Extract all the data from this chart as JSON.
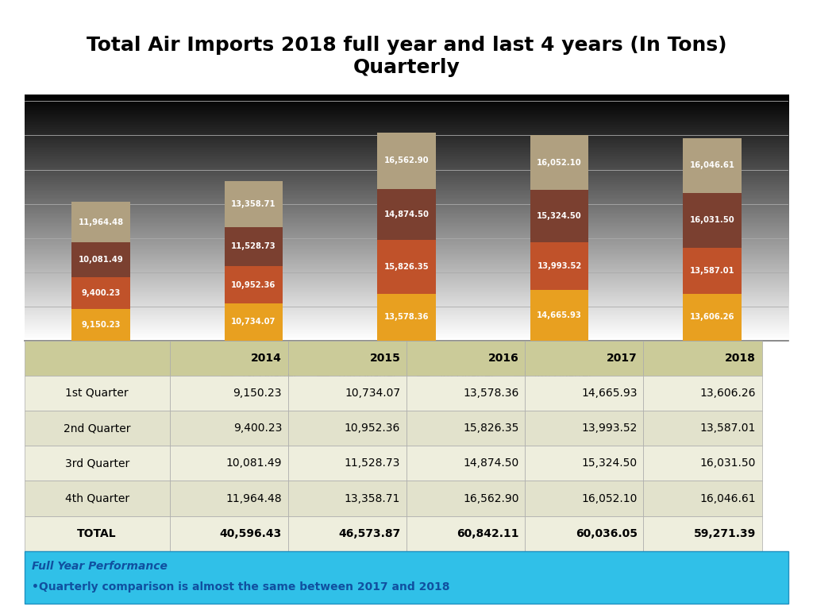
{
  "title": "Total Air Imports 2018 full year and last 4 years (In Tons)\nQuarterly",
  "years": [
    "2014",
    "2015",
    "2016",
    "2017",
    "2018"
  ],
  "quarters": {
    "1st Quarter": [
      9150.23,
      10734.07,
      13578.36,
      14665.93,
      13606.26
    ],
    "2nd Quarter": [
      9400.23,
      10952.36,
      15826.35,
      13993.52,
      13587.01
    ],
    "3rd Quarter": [
      10081.49,
      11528.73,
      14874.5,
      15324.5,
      16031.5
    ],
    "4th Quarter": [
      11964.48,
      13358.71,
      16562.9,
      16052.1,
      16046.61
    ]
  },
  "totals": [
    40596.43,
    46573.87,
    60842.11,
    60036.05,
    59271.39
  ],
  "colors": {
    "1st Quarter": "#E8A020",
    "2nd Quarter": "#C0522A",
    "3rd Quarter": "#7B4030",
    "4th Quarter": "#B0A080"
  },
  "note_bg": "#30C0E8",
  "note_text_color": "#1050A0",
  "note_title": "Full Year Performance",
  "note_body": "•Quarterly comparison is almost the same between 2017 and 2018"
}
